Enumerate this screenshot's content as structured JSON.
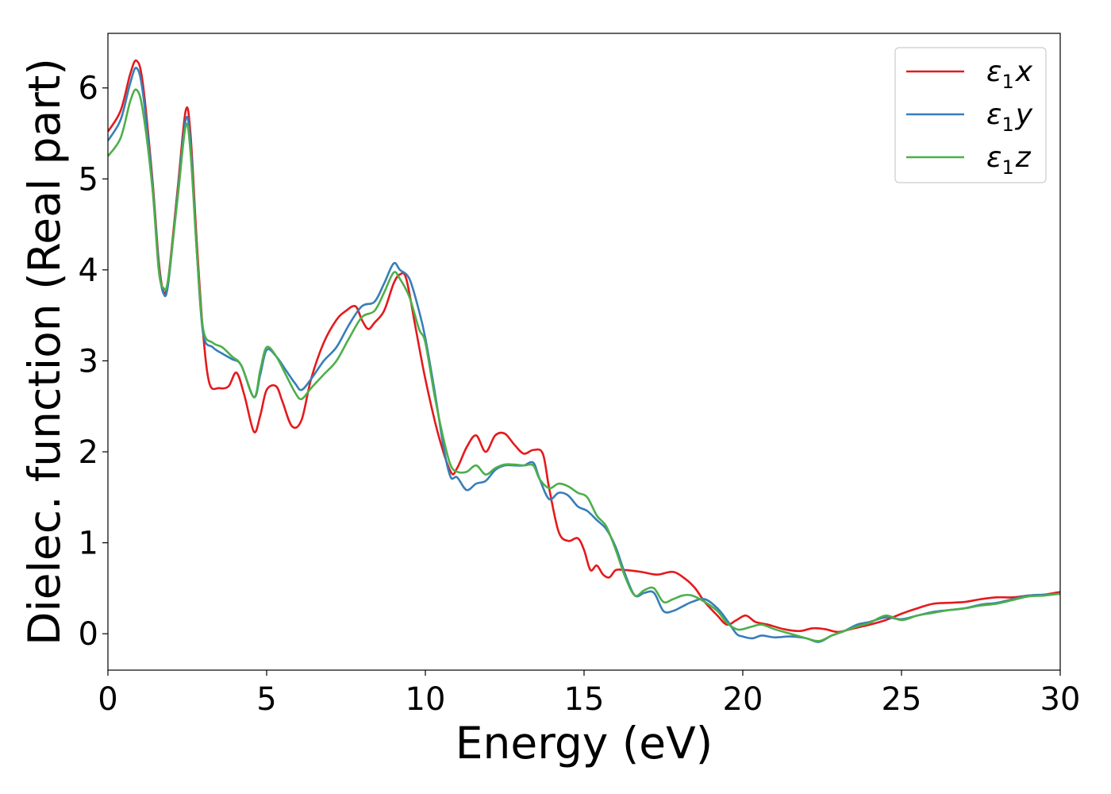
{
  "chart_data": {
    "type": "line",
    "xlabel": "Energy (eV)",
    "ylabel": "Dielec. function (Real part)",
    "xlim": [
      0,
      30
    ],
    "ylim": [
      -0.4,
      6.6
    ],
    "xticks": [
      "0",
      "5",
      "10",
      "15",
      "20",
      "25",
      "30"
    ],
    "yticks": [
      "0",
      "1",
      "2",
      "3",
      "4",
      "5",
      "6"
    ],
    "grid": false,
    "legend_position": "top-right",
    "series": [
      {
        "name": "ε1x",
        "legend_symbol": "ε",
        "legend_sub": "1",
        "legend_var": "x",
        "color": "#e41a1c",
        "x": [
          0,
          0.4,
          0.7,
          0.9,
          1.1,
          1.4,
          1.6,
          1.75,
          1.9,
          2.2,
          2.45,
          2.6,
          2.8,
          3.0,
          3.2,
          3.5,
          3.8,
          4.05,
          4.3,
          4.6,
          4.8,
          5.0,
          5.3,
          5.5,
          5.8,
          6.1,
          6.4,
          6.8,
          7.2,
          7.5,
          7.8,
          8.0,
          8.2,
          8.4,
          8.7,
          9.0,
          9.2,
          9.4,
          9.7,
          10.0,
          10.4,
          10.8,
          11.0,
          11.3,
          11.6,
          11.9,
          12.2,
          12.5,
          12.8,
          13.1,
          13.4,
          13.7,
          13.9,
          14.2,
          14.5,
          14.8,
          15.0,
          15.2,
          15.4,
          15.6,
          15.8,
          16.0,
          16.3,
          16.8,
          17.3,
          17.8,
          18.2,
          18.5,
          18.8,
          19.2,
          19.5,
          19.8,
          20.1,
          20.4,
          20.8,
          21.3,
          21.8,
          22.2,
          22.6,
          23.0,
          23.5,
          24.0,
          24.5,
          25.0,
          25.5,
          26.0,
          26.5,
          27.0,
          27.5,
          28.0,
          28.5,
          29.0,
          29.5,
          30.0
        ],
        "y": [
          5.52,
          5.75,
          6.15,
          6.3,
          6.05,
          5.0,
          4.1,
          3.76,
          3.9,
          4.9,
          5.75,
          5.5,
          4.3,
          3.3,
          2.75,
          2.7,
          2.72,
          2.87,
          2.62,
          2.22,
          2.4,
          2.68,
          2.72,
          2.55,
          2.28,
          2.35,
          2.8,
          3.2,
          3.45,
          3.55,
          3.6,
          3.45,
          3.35,
          3.42,
          3.55,
          3.85,
          3.95,
          3.9,
          3.35,
          2.8,
          2.2,
          1.78,
          1.82,
          2.05,
          2.18,
          2.0,
          2.18,
          2.2,
          2.08,
          1.98,
          2.02,
          1.98,
          1.6,
          1.12,
          1.02,
          1.05,
          0.92,
          0.7,
          0.75,
          0.65,
          0.62,
          0.7,
          0.7,
          0.68,
          0.65,
          0.68,
          0.6,
          0.5,
          0.35,
          0.2,
          0.1,
          0.15,
          0.2,
          0.13,
          0.1,
          0.05,
          0.03,
          0.06,
          0.05,
          0.02,
          0.06,
          0.1,
          0.15,
          0.22,
          0.28,
          0.33,
          0.34,
          0.35,
          0.38,
          0.4,
          0.4,
          0.42,
          0.43,
          0.46
        ]
      },
      {
        "name": "ε1y",
        "legend_symbol": "ε",
        "legend_sub": "1",
        "legend_var": "y",
        "color": "#377eb8",
        "x": [
          0,
          0.4,
          0.7,
          0.9,
          1.1,
          1.4,
          1.6,
          1.75,
          1.9,
          2.2,
          2.45,
          2.6,
          2.8,
          3.0,
          3.3,
          3.6,
          3.9,
          4.2,
          4.6,
          4.8,
          5.0,
          5.3,
          5.6,
          5.9,
          6.1,
          6.4,
          6.8,
          7.2,
          7.6,
          8.0,
          8.4,
          8.7,
          9.0,
          9.2,
          9.5,
          9.8,
          10.0,
          10.3,
          10.6,
          10.8,
          11.0,
          11.3,
          11.6,
          11.9,
          12.2,
          12.5,
          12.8,
          13.1,
          13.4,
          13.6,
          13.9,
          14.2,
          14.5,
          14.8,
          15.1,
          15.4,
          15.7,
          16.0,
          16.3,
          16.6,
          16.9,
          17.2,
          17.5,
          17.8,
          18.1,
          18.4,
          18.8,
          19.2,
          19.5,
          19.8,
          20.0,
          20.3,
          20.6,
          21.0,
          21.5,
          22.0,
          22.4,
          22.8,
          23.2,
          23.6,
          24.0,
          24.5,
          25.0,
          25.5,
          26.0,
          26.5,
          27.0,
          27.5,
          28.0,
          28.5,
          29.0,
          29.5,
          30.0
        ],
        "y": [
          5.42,
          5.65,
          6.05,
          6.22,
          5.95,
          4.95,
          4.05,
          3.74,
          3.85,
          4.85,
          5.65,
          5.4,
          4.2,
          3.3,
          3.15,
          3.08,
          3.02,
          2.95,
          2.6,
          2.85,
          3.12,
          3.05,
          2.9,
          2.75,
          2.68,
          2.8,
          3.0,
          3.15,
          3.4,
          3.6,
          3.65,
          3.85,
          4.07,
          4.0,
          3.9,
          3.55,
          3.25,
          2.65,
          2.0,
          1.72,
          1.72,
          1.58,
          1.65,
          1.68,
          1.8,
          1.85,
          1.85,
          1.85,
          1.88,
          1.7,
          1.48,
          1.55,
          1.52,
          1.4,
          1.35,
          1.25,
          1.15,
          0.95,
          0.65,
          0.42,
          0.45,
          0.45,
          0.25,
          0.25,
          0.3,
          0.35,
          0.38,
          0.28,
          0.15,
          0.0,
          -0.03,
          -0.05,
          -0.02,
          -0.04,
          -0.03,
          -0.05,
          -0.09,
          -0.02,
          0.03,
          0.1,
          0.13,
          0.18,
          0.16,
          0.2,
          0.24,
          0.26,
          0.28,
          0.32,
          0.34,
          0.38,
          0.42,
          0.43,
          0.44
        ]
      },
      {
        "name": "ε1z",
        "legend_symbol": "ε",
        "legend_sub": "1",
        "legend_var": "z",
        "color": "#4daf4a",
        "x": [
          0,
          0.4,
          0.7,
          0.9,
          1.1,
          1.4,
          1.6,
          1.75,
          1.9,
          2.2,
          2.45,
          2.6,
          2.8,
          3.0,
          3.3,
          3.6,
          3.9,
          4.2,
          4.6,
          4.8,
          5.0,
          5.3,
          5.6,
          5.9,
          6.1,
          6.4,
          6.8,
          7.2,
          7.6,
          8.0,
          8.4,
          8.7,
          9.0,
          9.2,
          9.5,
          9.8,
          10.0,
          10.3,
          10.6,
          10.8,
          11.0,
          11.3,
          11.6,
          11.9,
          12.2,
          12.5,
          12.8,
          13.1,
          13.4,
          13.6,
          13.9,
          14.2,
          14.5,
          14.8,
          15.1,
          15.4,
          15.7,
          16.0,
          16.3,
          16.6,
          16.9,
          17.2,
          17.5,
          17.8,
          18.1,
          18.4,
          18.8,
          19.2,
          19.5,
          19.8,
          20.0,
          20.3,
          20.6,
          21.0,
          21.5,
          22.0,
          22.4,
          22.8,
          23.2,
          23.6,
          24.0,
          24.5,
          25.0,
          25.5,
          26.0,
          26.5,
          27.0,
          27.5,
          28.0,
          28.5,
          29.0,
          29.5,
          30.0
        ],
        "y": [
          5.25,
          5.45,
          5.85,
          5.98,
          5.75,
          4.9,
          4.0,
          3.8,
          3.9,
          4.8,
          5.58,
          5.3,
          4.2,
          3.35,
          3.2,
          3.15,
          3.05,
          2.95,
          2.6,
          2.9,
          3.15,
          3.05,
          2.85,
          2.65,
          2.58,
          2.7,
          2.85,
          3.0,
          3.25,
          3.48,
          3.55,
          3.75,
          3.97,
          3.9,
          3.7,
          3.35,
          3.2,
          2.6,
          2.1,
          1.85,
          1.78,
          1.78,
          1.85,
          1.75,
          1.82,
          1.86,
          1.86,
          1.85,
          1.85,
          1.7,
          1.6,
          1.65,
          1.62,
          1.55,
          1.5,
          1.3,
          1.18,
          0.92,
          0.62,
          0.42,
          0.48,
          0.5,
          0.35,
          0.38,
          0.42,
          0.42,
          0.35,
          0.25,
          0.12,
          0.05,
          0.05,
          0.08,
          0.1,
          0.05,
          0.0,
          -0.05,
          -0.08,
          -0.02,
          0.03,
          0.08,
          0.12,
          0.2,
          0.15,
          0.2,
          0.23,
          0.26,
          0.28,
          0.31,
          0.33,
          0.37,
          0.41,
          0.42,
          0.44
        ]
      }
    ]
  }
}
